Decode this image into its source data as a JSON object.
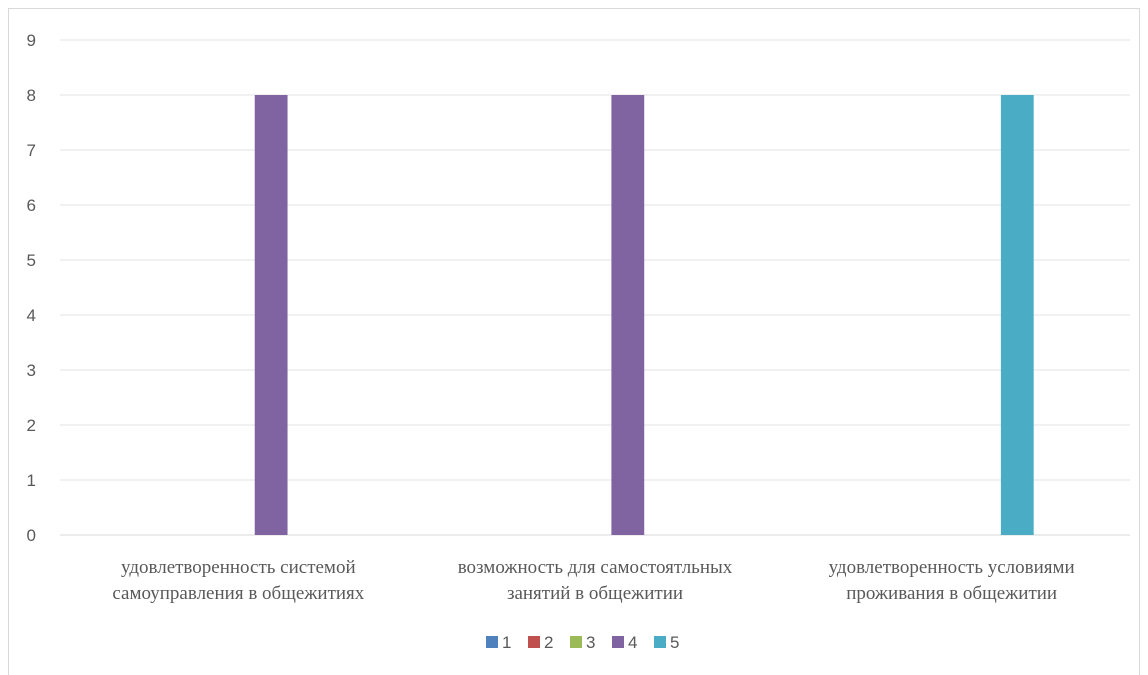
{
  "chart_data": {
    "type": "bar",
    "title": "",
    "xlabel": "",
    "ylabel": "",
    "ylim": [
      0,
      9
    ],
    "yticks": [
      "0",
      "1",
      "2",
      "3",
      "4",
      "5",
      "6",
      "7",
      "8",
      "9"
    ],
    "grid": true,
    "legend_position": "bottom",
    "categories": [
      [
        "удовлетворенность системой",
        "самоуправления в общежитиях"
      ],
      [
        "возможность для самостоятльных",
        "занятий в общежитии"
      ],
      [
        "удовлетворенность условиями",
        "проживания в общежитии"
      ]
    ],
    "series": [
      {
        "name": "1",
        "color": "#4f81bd",
        "values": [
          0,
          0,
          0
        ]
      },
      {
        "name": "2",
        "color": "#c0504d",
        "values": [
          0,
          0,
          0
        ]
      },
      {
        "name": "3",
        "color": "#9bbb59",
        "values": [
          0,
          0,
          0
        ]
      },
      {
        "name": "4",
        "color": "#8064a2",
        "values": [
          8,
          8,
          0
        ]
      },
      {
        "name": "5",
        "color": "#4bacc6",
        "values": [
          0,
          0,
          8
        ]
      }
    ]
  }
}
